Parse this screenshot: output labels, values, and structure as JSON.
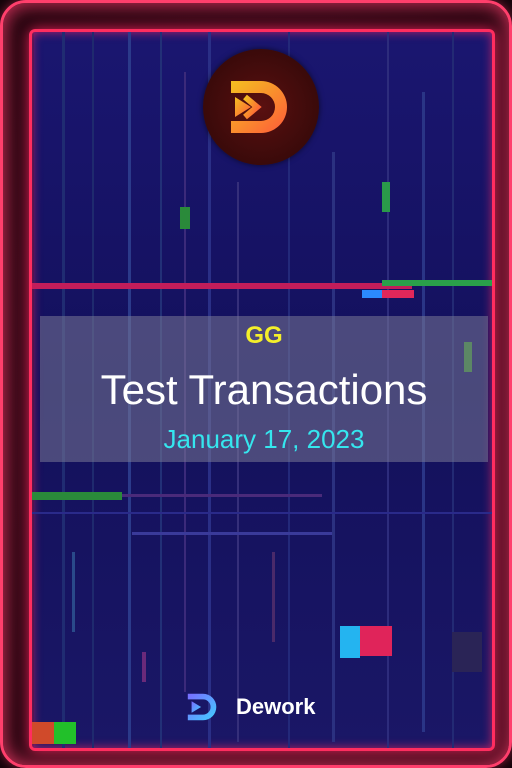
{
  "card": {
    "organization": "GG",
    "title": "Test Transactions",
    "date": "January 17, 2023",
    "brand_name": "Dework"
  },
  "icons": {
    "top_logo": "dework-logo-icon",
    "brand_logo": "dework-logo-icon"
  },
  "colors": {
    "frame": "#ff2d5f",
    "background": "#1a1670",
    "organization_text": "#f4ef2a",
    "title_text": "#ffffff",
    "date_text": "#35e6ee",
    "logo_gradient_start": "#f4c020",
    "logo_gradient_end": "#ff5a3a"
  }
}
